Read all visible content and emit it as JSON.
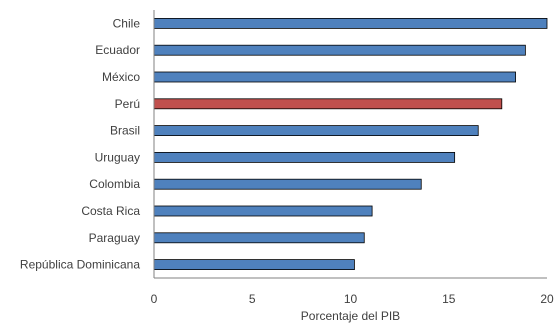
{
  "chart_data": {
    "type": "bar",
    "orientation": "horizontal",
    "categories": [
      "Chile",
      "Ecuador",
      "México",
      "Perú",
      "Brasil",
      "Uruguay",
      "Colombia",
      "Costa Rica",
      "Paraguay",
      "República Dominicana"
    ],
    "values": [
      20.0,
      18.9,
      18.4,
      17.7,
      16.5,
      15.3,
      13.6,
      11.1,
      10.7,
      10.2
    ],
    "highlight": "Perú",
    "colors": {
      "bar": "#4f81bd",
      "highlight": "#c0504d",
      "outline": "#000000",
      "axis": "#808080"
    },
    "xlabel": "Porcentaje del PIB",
    "ylabel": "",
    "title": "",
    "xlim": [
      0,
      20
    ],
    "xticks": [
      "0",
      "5",
      "10",
      "15",
      "20"
    ],
    "grid": false,
    "legend": "none"
  }
}
